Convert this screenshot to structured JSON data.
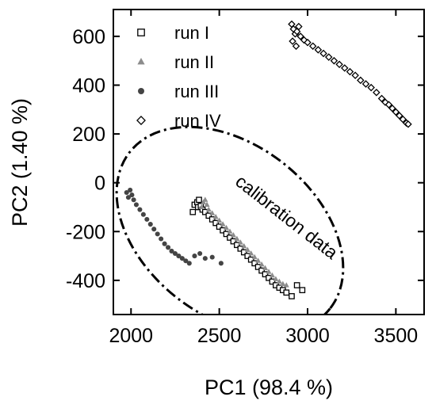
{
  "chart_data": {
    "type": "scatter",
    "xlabel": "PC1 (98.4 %)",
    "ylabel": "PC2 (1.40 %)",
    "xlim": [
      1900,
      3660
    ],
    "ylim": [
      -540,
      710
    ],
    "x_ticks": [
      2000,
      2500,
      3000,
      3500
    ],
    "y_ticks": [
      -400,
      -200,
      0,
      200,
      400,
      600
    ],
    "grid": false,
    "legend_position": "top-left",
    "annotation": {
      "text": "calibration data",
      "ellipse": {
        "cx": 2560,
        "cy": -195,
        "rx": 720,
        "ry": 185,
        "angle_deg": -38
      }
    },
    "series": [
      {
        "name": "run I",
        "marker": "open-square",
        "color": "#000000",
        "points": [
          [
            2360,
            -90
          ],
          [
            2375,
            -80
          ],
          [
            2380,
            -100
          ],
          [
            2385,
            -70
          ],
          [
            2395,
            -95
          ],
          [
            2405,
            -110
          ],
          [
            2420,
            -120
          ],
          [
            2440,
            -135
          ],
          [
            2460,
            -150
          ],
          [
            2480,
            -165
          ],
          [
            2500,
            -180
          ],
          [
            2520,
            -195
          ],
          [
            2540,
            -210
          ],
          [
            2560,
            -225
          ],
          [
            2580,
            -240
          ],
          [
            2600,
            -255
          ],
          [
            2620,
            -270
          ],
          [
            2640,
            -285
          ],
          [
            2660,
            -300
          ],
          [
            2680,
            -315
          ],
          [
            2700,
            -330
          ],
          [
            2720,
            -345
          ],
          [
            2740,
            -360
          ],
          [
            2760,
            -375
          ],
          [
            2780,
            -390
          ],
          [
            2800,
            -405
          ],
          [
            2820,
            -420
          ],
          [
            2840,
            -430
          ],
          [
            2860,
            -440
          ],
          [
            2880,
            -450
          ],
          [
            2910,
            -465
          ],
          [
            2940,
            -420
          ],
          [
            2970,
            -440
          ],
          [
            2350,
            -120
          ]
        ]
      },
      {
        "name": "run II",
        "marker": "filled-triangle",
        "color": "#8c8c8c",
        "points": [
          [
            2400,
            -100
          ],
          [
            2410,
            -80
          ],
          [
            2420,
            -70
          ],
          [
            2430,
            -90
          ],
          [
            2440,
            -110
          ],
          [
            2460,
            -125
          ],
          [
            2480,
            -140
          ],
          [
            2500,
            -155
          ],
          [
            2520,
            -170
          ],
          [
            2540,
            -185
          ],
          [
            2560,
            -200
          ],
          [
            2580,
            -215
          ],
          [
            2600,
            -230
          ],
          [
            2620,
            -245
          ],
          [
            2640,
            -260
          ],
          [
            2660,
            -275
          ],
          [
            2680,
            -290
          ],
          [
            2700,
            -305
          ],
          [
            2720,
            -320
          ],
          [
            2740,
            -335
          ],
          [
            2760,
            -350
          ],
          [
            2780,
            -365
          ],
          [
            2800,
            -380
          ],
          [
            2820,
            -395
          ],
          [
            2840,
            -405
          ],
          [
            2860,
            -415
          ],
          [
            2880,
            -420
          ]
        ]
      },
      {
        "name": "run III",
        "marker": "filled-circle",
        "color": "#444444",
        "points": [
          [
            1975,
            -40
          ],
          [
            1985,
            -60
          ],
          [
            1995,
            -30
          ],
          [
            2005,
            -50
          ],
          [
            2015,
            -70
          ],
          [
            2030,
            -90
          ],
          [
            2050,
            -110
          ],
          [
            2070,
            -130
          ],
          [
            2090,
            -150
          ],
          [
            2110,
            -170
          ],
          [
            2130,
            -190
          ],
          [
            2150,
            -210
          ],
          [
            2170,
            -230
          ],
          [
            2190,
            -250
          ],
          [
            2210,
            -265
          ],
          [
            2230,
            -280
          ],
          [
            2250,
            -290
          ],
          [
            2270,
            -300
          ],
          [
            2290,
            -310
          ],
          [
            2310,
            -320
          ],
          [
            2330,
            -330
          ],
          [
            2360,
            -300
          ],
          [
            2390,
            -290
          ],
          [
            2420,
            -310
          ],
          [
            2460,
            -305
          ],
          [
            2510,
            -330
          ]
        ]
      },
      {
        "name": "run IV",
        "marker": "open-diamond",
        "color": "#000000",
        "points": [
          [
            2910,
            650
          ],
          [
            2920,
            630
          ],
          [
            2930,
            610
          ],
          [
            2940,
            620
          ],
          [
            2950,
            640
          ],
          [
            2915,
            580
          ],
          [
            2935,
            560
          ],
          [
            2960,
            600
          ],
          [
            2980,
            585
          ],
          [
            3000,
            575
          ],
          [
            3030,
            560
          ],
          [
            3060,
            545
          ],
          [
            3090,
            530
          ],
          [
            3120,
            515
          ],
          [
            3150,
            500
          ],
          [
            3180,
            485
          ],
          [
            3210,
            470
          ],
          [
            3240,
            455
          ],
          [
            3270,
            440
          ],
          [
            3300,
            420
          ],
          [
            3330,
            405
          ],
          [
            3360,
            390
          ],
          [
            3390,
            370
          ],
          [
            3420,
            345
          ],
          [
            3440,
            330
          ],
          [
            3460,
            320
          ],
          [
            3480,
            305
          ],
          [
            3500,
            290
          ],
          [
            3520,
            275
          ],
          [
            3540,
            260
          ],
          [
            3560,
            245
          ],
          [
            3570,
            240
          ]
        ]
      }
    ]
  }
}
